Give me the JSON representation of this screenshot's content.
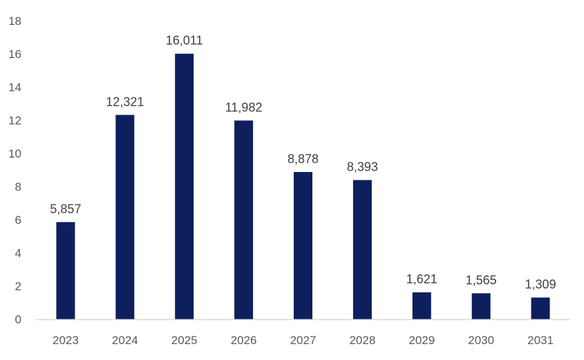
{
  "chart_data": {
    "type": "bar",
    "title": "",
    "xlabel": "",
    "ylabel": "",
    "categories": [
      "2023",
      "2024",
      "2025",
      "2026",
      "2027",
      "2028",
      "2029",
      "2030",
      "2031"
    ],
    "values": [
      5.857,
      12.321,
      16.011,
      11.982,
      8.878,
      8.393,
      1.621,
      1.565,
      1.309
    ],
    "data_labels": [
      "5,857",
      "12,321",
      "16,011",
      "11,982",
      "8,878",
      "8,393",
      "1,621",
      "1,565",
      "1,309"
    ],
    "ylim": [
      0,
      18
    ],
    "yticks": [
      "0",
      "2",
      "4",
      "6",
      "8",
      "10",
      "12",
      "14",
      "16",
      "18"
    ],
    "grid": false,
    "legend": "none",
    "colors": {
      "bar": "#0d1f5c",
      "axis": "#d9d9d9"
    }
  }
}
